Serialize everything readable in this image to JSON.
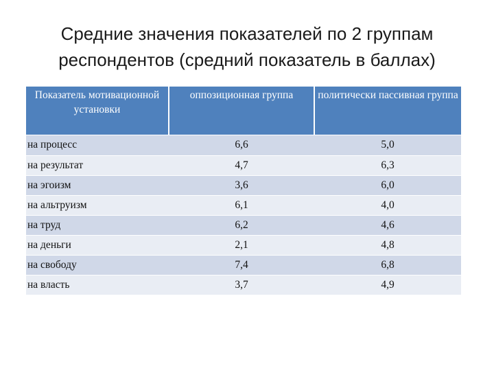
{
  "title": {
    "line1": "Средние значения показателей по 2 группам",
    "line2": "респондентов (средний показатель в баллах)"
  },
  "table": {
    "headers": [
      "Показатель мотивационной установки",
      "оппозиционная группа",
      "политически пассивная группа"
    ],
    "rows": [
      {
        "label": "на процесс",
        "opposition": "6,6",
        "passive": "5,0"
      },
      {
        "label": "на результат",
        "opposition": "4,7",
        "passive": "6,3"
      },
      {
        "label": "на эгоизм",
        "opposition": "3,6",
        "passive": "6,0"
      },
      {
        "label": "на альтруизм",
        "opposition": "6,1",
        "passive": "4,0"
      },
      {
        "label": "на труд",
        "opposition": "6,2",
        "passive": "4,6"
      },
      {
        "label": "на деньги",
        "opposition": "2,1",
        "passive": "4,8"
      },
      {
        "label": "на свободу",
        "opposition": "7,4",
        "passive": "6,8"
      },
      {
        "label": "на власть",
        "opposition": "3,7",
        "passive": "4,9"
      }
    ]
  },
  "colors": {
    "header_bg": "#4f81bd",
    "row_odd": "#d0d8e8",
    "row_even": "#e9edf4"
  }
}
